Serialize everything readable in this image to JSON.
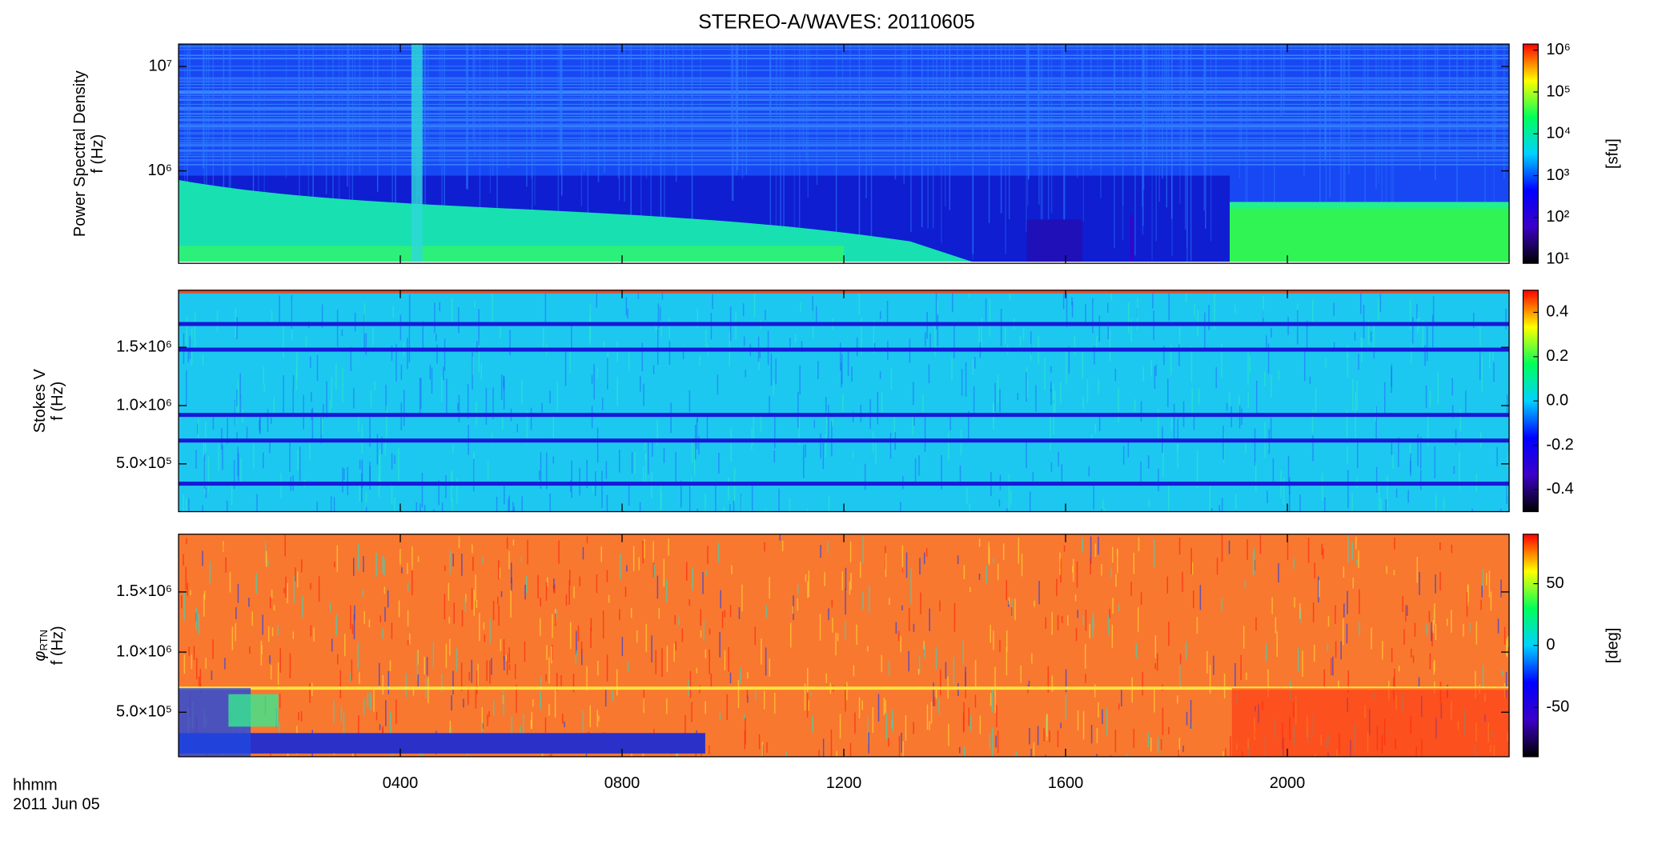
{
  "chart_data": [
    {
      "type": "spectrogram",
      "title": "STEREO-A/WAVES: 20110605",
      "ylabel": [
        "Power Spectral Density",
        "f (Hz)"
      ],
      "log_y": true,
      "ylim": [
        130000,
        16400000
      ],
      "yticks": [
        {
          "value": 1000000,
          "label": "10⁶"
        },
        {
          "value": 10000000,
          "label": "10⁷"
        }
      ],
      "colorbar": {
        "log": true,
        "lim": [
          8,
          1400000
        ],
        "label": "[sfu]",
        "ticks": [
          {
            "value": 10,
            "label": "10¹"
          },
          {
            "value": 100,
            "label": "10²"
          },
          {
            "value": 1000,
            "label": "10³"
          },
          {
            "value": 10000,
            "label": "10⁴"
          },
          {
            "value": 100000,
            "label": "10⁵"
          },
          {
            "value": 1000000,
            "label": "10⁶"
          }
        ],
        "colors": [
          "#000000",
          "#3c00c8",
          "#0000ff",
          "#00d2ff",
          "#00ff5a",
          "#ffff00",
          "#ff0000"
        ]
      }
    },
    {
      "type": "spectrogram",
      "ylabel": [
        "Stokes V",
        "f (Hz)"
      ],
      "log_y": false,
      "ylim": [
        90000,
        1990000
      ],
      "yticks": [
        {
          "value": 500000,
          "label": "5.0×10⁵"
        },
        {
          "value": 1000000,
          "label": "1.0×10⁶"
        },
        {
          "value": 1500000,
          "label": "1.5×10⁶"
        }
      ],
      "colorbar": {
        "log": false,
        "lim": [
          -0.5,
          0.5
        ],
        "ticks": [
          {
            "value": -0.4,
            "label": "-0.4"
          },
          {
            "value": -0.2,
            "label": "-0.2"
          },
          {
            "value": 0,
            "label": "0.0"
          },
          {
            "value": 0.2,
            "label": "0.2"
          },
          {
            "value": 0.4,
            "label": "0.4"
          }
        ],
        "colors": [
          "#000000",
          "#3c00c8",
          "#0000ff",
          "#00d2ff",
          "#00ff5a",
          "#ffff00",
          "#ff0000"
        ]
      }
    },
    {
      "type": "spectrogram",
      "ylabel_symbol": "φ",
      "ylabel_subscript": "RTN",
      "ylabel": [
        "f (Hz)"
      ],
      "log_y": false,
      "ylim": [
        130000,
        1980000
      ],
      "yticks": [
        {
          "value": 500000,
          "label": "5.0×10⁵"
        },
        {
          "value": 1000000,
          "label": "1.0×10⁶"
        },
        {
          "value": 1500000,
          "label": "1.5×10⁶"
        }
      ],
      "xlim": [
        0,
        24
      ],
      "xticks": [
        {
          "value": 4,
          "label": "0400"
        },
        {
          "value": 8,
          "label": "0800"
        },
        {
          "value": 12,
          "label": "1200"
        },
        {
          "value": 16,
          "label": "1600"
        },
        {
          "value": 20,
          "label": "2000"
        }
      ],
      "xlabel": [
        "hhmm",
        "2011 Jun 05"
      ],
      "colorbar": {
        "log": false,
        "lim": [
          -90,
          90
        ],
        "label": "[deg]",
        "ticks": [
          -50,
          0,
          50
        ],
        "colors": [
          "#000000",
          "#3c00c8",
          "#0000ff",
          "#00d2ff",
          "#00ff5a",
          "#ffff00",
          "#ff0000"
        ]
      }
    }
  ]
}
